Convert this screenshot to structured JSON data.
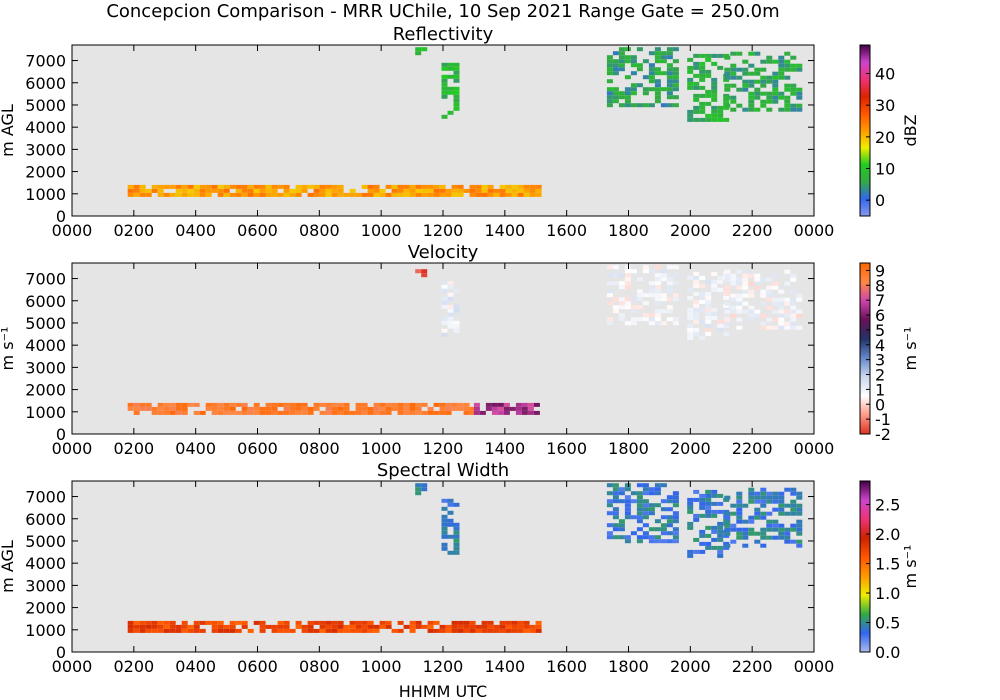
{
  "figure": {
    "suptitle": "Concepcion Comparison - MRR UChile, 10 Sep 2021 Range Gate = 250.0m",
    "xlabel": "HHMM UTC"
  },
  "colors": {
    "background": "#e5e5e5",
    "refl_cmap": [
      "#8899ee",
      "#3366ee",
      "#33aa44",
      "#22cc22",
      "#eeee00",
      "#ff9900",
      "#ff5500",
      "#dd2200",
      "#ee3377",
      "#cc44cc",
      "#440044"
    ],
    "vel_cmap": [
      "#dd3322",
      "#ff9988",
      "#ffffff",
      "#ccd8ee",
      "#6688cc",
      "#223366",
      "#661155",
      "#cc44aa",
      "#ff8844",
      "#ff6600"
    ],
    "sw_cmap": [
      "#aabbee",
      "#3366ee",
      "#33aa44",
      "#eeee00",
      "#ff9900",
      "#ff5500",
      "#cc2200",
      "#ee3377",
      "#cc44cc",
      "#440044"
    ]
  },
  "chart_data": [
    {
      "type": "heatmap",
      "title": "Reflectivity",
      "ylabel": "m AGL",
      "colorbar_label": "dBZ",
      "xlim": [
        0,
        2400
      ],
      "ylim": [
        0,
        7700
      ],
      "x_ticks": [
        "0000",
        "0200",
        "0400",
        "0600",
        "0800",
        "1000",
        "1200",
        "1400",
        "1600",
        "1800",
        "2000",
        "2200",
        "0000"
      ],
      "y_ticks": [
        0,
        1000,
        2000,
        3000,
        4000,
        5000,
        6000,
        7000
      ],
      "colorbar_range": [
        -5,
        49
      ],
      "colorbar_ticks": [
        "0",
        "10",
        "20",
        "30",
        "40"
      ],
      "colorbar_tick_values": [
        0,
        10,
        20,
        30,
        40
      ],
      "regions": [
        {
          "x_start": 180,
          "x_end": 1500,
          "y_bottom": 900,
          "y_top": 1400,
          "value": 22
        },
        {
          "x_start": 1110,
          "x_end": 1130,
          "y_bottom": 7200,
          "y_top": 7600,
          "value": 10
        },
        {
          "x_start": 1195,
          "x_end": 1235,
          "y_bottom": 4500,
          "y_top": 6900,
          "value": 8
        },
        {
          "x_start": 1730,
          "x_end": 1950,
          "y_bottom": 4900,
          "y_top": 7600,
          "value": 5
        },
        {
          "x_start": 1990,
          "x_end": 2110,
          "y_bottom": 4400,
          "y_top": 7300,
          "value": 7
        },
        {
          "x_start": 2110,
          "x_end": 2350,
          "y_bottom": 4700,
          "y_top": 7400,
          "value": 6
        }
      ]
    },
    {
      "type": "heatmap",
      "title": "Velocity",
      "ylabel": "m s⁻¹",
      "colorbar_label": "m s⁻¹",
      "xlim": [
        0,
        2400
      ],
      "ylim": [
        0,
        7700
      ],
      "x_ticks": [
        "0000",
        "0200",
        "0400",
        "0600",
        "0800",
        "1000",
        "1200",
        "1400",
        "1600",
        "1800",
        "2000",
        "2200",
        "0000"
      ],
      "y_ticks": [
        0,
        1000,
        2000,
        3000,
        4000,
        5000,
        6000,
        7000
      ],
      "colorbar_range": [
        -2,
        9.5
      ],
      "colorbar_ticks": [
        "-2",
        "-1",
        "0",
        "1",
        "2",
        "3",
        "4",
        "5",
        "6",
        "7",
        "8",
        "9"
      ],
      "colorbar_tick_values": [
        -2,
        -1,
        0,
        1,
        2,
        3,
        4,
        5,
        6,
        7,
        8,
        9
      ],
      "regions": [
        {
          "x_start": 180,
          "x_end": 1300,
          "y_bottom": 900,
          "y_top": 1400,
          "value": 8.7
        },
        {
          "x_start": 1300,
          "x_end": 1500,
          "y_bottom": 900,
          "y_top": 1400,
          "value": 6.5
        },
        {
          "x_start": 1110,
          "x_end": 1130,
          "y_bottom": 7200,
          "y_top": 7600,
          "value": -1.5
        },
        {
          "x_start": 1195,
          "x_end": 1235,
          "y_bottom": 4500,
          "y_top": 6900,
          "value": 1
        },
        {
          "x_start": 1730,
          "x_end": 1950,
          "y_bottom": 4900,
          "y_top": 7600,
          "value": 0.8
        },
        {
          "x_start": 1990,
          "x_end": 2110,
          "y_bottom": 4400,
          "y_top": 7300,
          "value": 0.8
        },
        {
          "x_start": 2110,
          "x_end": 2350,
          "y_bottom": 4700,
          "y_top": 7400,
          "value": 0.7
        }
      ]
    },
    {
      "type": "heatmap",
      "title": "Spectral Width",
      "ylabel": "m AGL",
      "colorbar_label": "m s⁻¹",
      "xlim": [
        0,
        2400
      ],
      "ylim": [
        0,
        7700
      ],
      "x_ticks": [
        "0000",
        "0200",
        "0400",
        "0600",
        "0800",
        "1000",
        "1200",
        "1400",
        "1600",
        "1800",
        "2000",
        "2200",
        "0000"
      ],
      "y_ticks": [
        0,
        1000,
        2000,
        3000,
        4000,
        5000,
        6000,
        7000
      ],
      "colorbar_range": [
        0,
        2.9
      ],
      "colorbar_ticks": [
        "0.0",
        "0.5",
        "1.0",
        "1.5",
        "2.0",
        "2.5"
      ],
      "colorbar_tick_values": [
        0,
        0.5,
        1,
        1.5,
        2,
        2.5
      ],
      "regions": [
        {
          "x_start": 180,
          "x_end": 1500,
          "y_bottom": 900,
          "y_top": 1400,
          "value": 1.7
        },
        {
          "x_start": 1110,
          "x_end": 1130,
          "y_bottom": 7200,
          "y_top": 7600,
          "value": 0.4
        },
        {
          "x_start": 1195,
          "x_end": 1235,
          "y_bottom": 4500,
          "y_top": 6900,
          "value": 0.4
        },
        {
          "x_start": 1730,
          "x_end": 1950,
          "y_bottom": 4900,
          "y_top": 7600,
          "value": 0.4
        },
        {
          "x_start": 1990,
          "x_end": 2110,
          "y_bottom": 4400,
          "y_top": 7300,
          "value": 0.4
        },
        {
          "x_start": 2110,
          "x_end": 2350,
          "y_bottom": 4700,
          "y_top": 7400,
          "value": 0.4
        }
      ]
    }
  ]
}
